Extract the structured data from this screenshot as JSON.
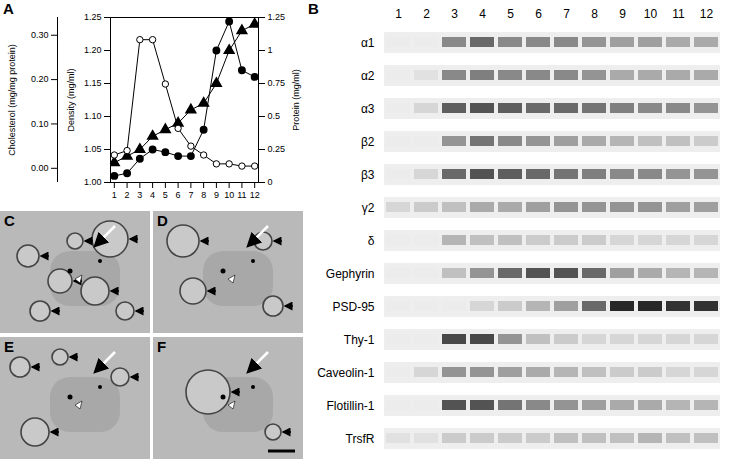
{
  "chart_data": {
    "panel_label": "A",
    "type": "line",
    "x": [
      1,
      2,
      3,
      4,
      5,
      6,
      7,
      8,
      9,
      10,
      11,
      12
    ],
    "xlim": [
      0.7,
      12.3
    ],
    "xticks": [
      1,
      2,
      3,
      4,
      5,
      6,
      7,
      8,
      9,
      10,
      11,
      12
    ],
    "series": [
      {
        "axis_label": "Cholesterol (mg/mg protein)",
        "marker": "circle-open",
        "ylim": [
          -0.032,
          0.34
        ],
        "yticks": [
          {
            "value": 0,
            "label": "0.00"
          },
          {
            "value": 0.1,
            "label": "0.10"
          },
          {
            "value": 0.2,
            "label": "0.20"
          },
          {
            "value": 0.3,
            "label": "0.30"
          }
        ],
        "values": [
          0.03,
          0.04,
          0.29,
          0.29,
          0.19,
          0.09,
          0.05,
          0.03,
          0.01,
          0.01,
          0.005,
          0.005
        ]
      },
      {
        "axis_label": "Density (mg/ml)",
        "marker": "triangle",
        "ylim": [
          1.0,
          1.25
        ],
        "yticks": [
          {
            "value": 1.0,
            "label": "1.00"
          },
          1.05,
          {
            "value": 1.1,
            "label": "1.10"
          },
          1.15,
          {
            "value": 1.2,
            "label": "1.20"
          },
          1.25
        ],
        "values": [
          1.03,
          1.04,
          1.05,
          1.07,
          1.08,
          1.09,
          1.11,
          1.12,
          1.15,
          1.2,
          1.23,
          1.24
        ]
      },
      {
        "axis_label": "Protein (mg/ml)",
        "marker": "circle",
        "axis": "y2",
        "ylim": [
          0,
          1.25
        ],
        "yticks": [
          0,
          0.25,
          0.5,
          0.75,
          1,
          1.25
        ],
        "values": [
          0.05,
          0.07,
          0.18,
          0.25,
          0.23,
          0.2,
          0.2,
          0.4,
          1.0,
          1.22,
          0.85,
          0.8
        ]
      }
    ]
  },
  "blot": {
    "panel_label": "B",
    "lanes": [
      1,
      2,
      3,
      4,
      5,
      6,
      7,
      8,
      9,
      10,
      11,
      12
    ],
    "intensity_range": [
      0,
      1
    ],
    "rows": [
      {
        "label": "α1",
        "intensity": [
          0,
          0,
          0.45,
          0.6,
          0.45,
          0.45,
          0.45,
          0.4,
          0.35,
          0.35,
          0.3,
          0.3
        ]
      },
      {
        "label": "α2",
        "intensity": [
          0,
          0.05,
          0.45,
          0.5,
          0.45,
          0.45,
          0.45,
          0.4,
          0.3,
          0.3,
          0.3,
          0.3
        ]
      },
      {
        "label": "α3",
        "intensity": [
          0,
          0.1,
          0.65,
          0.7,
          0.65,
          0.6,
          0.6,
          0.55,
          0.5,
          0.45,
          0.45,
          0.4
        ]
      },
      {
        "label": "β2",
        "intensity": [
          0,
          0,
          0.4,
          0.55,
          0.45,
          0.4,
          0.35,
          0.3,
          0.25,
          0.2,
          0.2,
          0.15
        ]
      },
      {
        "label": "β3",
        "intensity": [
          0,
          0.1,
          0.6,
          0.7,
          0.65,
          0.6,
          0.55,
          0.5,
          0.45,
          0.45,
          0.4,
          0.4
        ]
      },
      {
        "label": "γ2",
        "intensity": [
          0.1,
          0.15,
          0.2,
          0.3,
          0.3,
          0.35,
          0.4,
          0.4,
          0.4,
          0.4,
          0.35,
          0.35
        ]
      },
      {
        "label": "δ",
        "intensity": [
          0,
          0,
          0.25,
          0.2,
          0.2,
          0.15,
          0.15,
          0.15,
          0.1,
          0.1,
          0.1,
          0.1
        ]
      },
      {
        "label": "Gephyrin",
        "intensity": [
          0,
          0,
          0.2,
          0.4,
          0.6,
          0.7,
          0.7,
          0.6,
          0.35,
          0.3,
          0.25,
          0.25
        ]
      },
      {
        "label": "PSD-95",
        "intensity": [
          0,
          0,
          0,
          0.1,
          0.15,
          0.25,
          0.35,
          0.6,
          0.9,
          0.9,
          0.85,
          0.85
        ]
      },
      {
        "label": "Thy-1",
        "intensity": [
          0,
          0,
          0.75,
          0.75,
          0.4,
          0.2,
          0.15,
          0.1,
          0.1,
          0.1,
          0.1,
          0.1
        ]
      },
      {
        "label": "Caveolin-1",
        "intensity": [
          0,
          0.1,
          0.4,
          0.4,
          0.35,
          0.3,
          0.25,
          0.2,
          0.15,
          0.15,
          0.1,
          0.1
        ]
      },
      {
        "label": "Flotillin-1",
        "intensity": [
          0,
          0,
          0.7,
          0.7,
          0.55,
          0.45,
          0.4,
          0.35,
          0.3,
          0.3,
          0.25,
          0.25
        ]
      },
      {
        "label": "TrsfR",
        "intensity": [
          0.05,
          0.05,
          0.15,
          0.15,
          0.15,
          0.15,
          0.2,
          0.2,
          0.2,
          0.25,
          0.2,
          0.2
        ]
      }
    ]
  },
  "micrographs": {
    "panel_labels": [
      "C",
      "D",
      "E",
      "F"
    ]
  }
}
